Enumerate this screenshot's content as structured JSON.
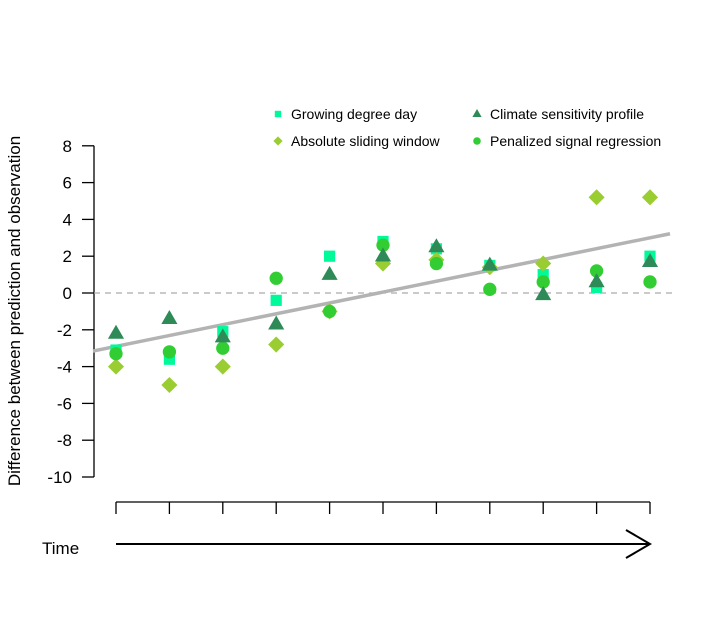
{
  "chart_data": {
    "type": "scatter",
    "title": "",
    "xlabel": "Time",
    "ylabel": "Difference between prediction and observation",
    "ylim": [
      -10,
      8
    ],
    "yticks": [
      "-10",
      "-8",
      "-6",
      "-4",
      "-2",
      "0",
      "2",
      "4",
      "6",
      "8"
    ],
    "x": [
      1,
      2,
      3,
      4,
      5,
      6,
      7,
      8,
      9,
      10,
      11
    ],
    "xticks_labeled": false,
    "reference_line": {
      "y": 0,
      "style": "dashed",
      "color": "#aaaaaa"
    },
    "trend_line": {
      "intercept_at_x1": -2.9,
      "slope": 0.59,
      "color": "#b3b3b3"
    },
    "legend_position": "top",
    "series": [
      {
        "name": "Growing degree day",
        "marker": "square",
        "color": "#00FA9A",
        "values": [
          -3.1,
          -3.6,
          -2.1,
          -0.4,
          2.0,
          2.8,
          2.4,
          1.5,
          1.0,
          0.3,
          2.0
        ]
      },
      {
        "name": "Climate sensitivity profile",
        "marker": "triangle",
        "color": "#2E8B57",
        "values": [
          -2.2,
          -1.4,
          -2.4,
          -1.7,
          1.0,
          2.0,
          2.5,
          1.5,
          -0.1,
          0.6,
          1.7
        ]
      },
      {
        "name": "Absolute sliding window",
        "marker": "diamond",
        "color": "#9ACD32",
        "values": [
          -4.0,
          -5.0,
          -4.0,
          -2.8,
          -1.0,
          1.6,
          1.8,
          1.4,
          1.6,
          5.2,
          5.2
        ]
      },
      {
        "name": "Penalized signal regression",
        "marker": "circle",
        "color": "#32CD32",
        "values": [
          -3.3,
          -3.2,
          -3.0,
          0.8,
          -1.0,
          2.6,
          1.6,
          0.2,
          0.6,
          1.2,
          0.6
        ]
      }
    ]
  }
}
